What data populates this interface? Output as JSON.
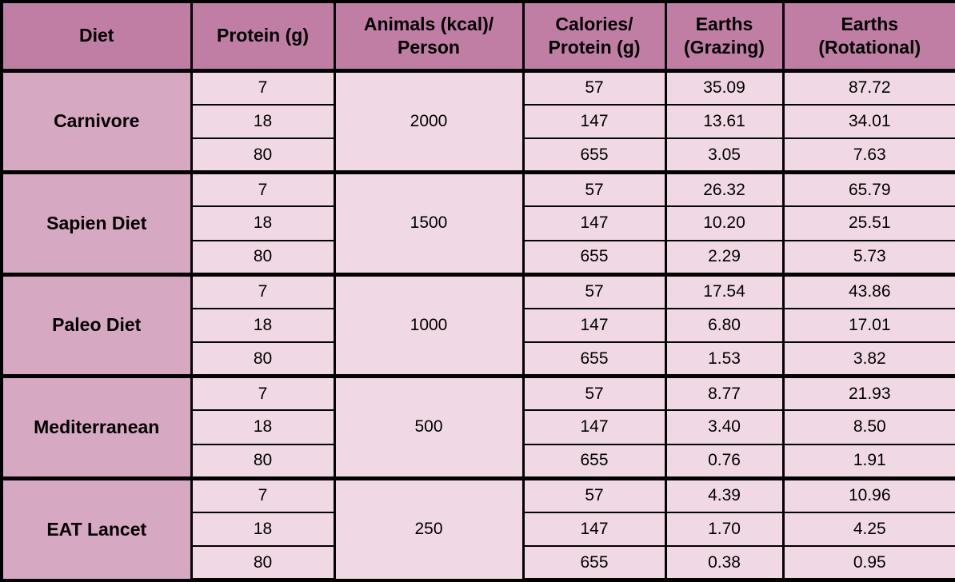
{
  "colors": {
    "header_bg": "#C07EA4",
    "diet_cell_bg": "#D7A8C2",
    "cell_bg": "#F0D9E5",
    "border": "#000000",
    "text": "#000000"
  },
  "chart_data": {
    "type": "table",
    "columns": [
      "Diet",
      "Protein (g)",
      "Animals (kcal)/\nPerson",
      "Calories/\nProtein (g)",
      "Earths\n(Grazing)",
      "Earths\n(Rotational)"
    ],
    "groups": [
      {
        "diet": "Carnivore",
        "animals_kcal_person": "2000",
        "rows": [
          {
            "protein_g": "7",
            "calories_protein_g": "57",
            "earths_grazing": "35.09",
            "earths_rotational": "87.72"
          },
          {
            "protein_g": "18",
            "calories_protein_g": "147",
            "earths_grazing": "13.61",
            "earths_rotational": "34.01"
          },
          {
            "protein_g": "80",
            "calories_protein_g": "655",
            "earths_grazing": "3.05",
            "earths_rotational": "7.63"
          }
        ]
      },
      {
        "diet": "Sapien Diet",
        "animals_kcal_person": "1500",
        "rows": [
          {
            "protein_g": "7",
            "calories_protein_g": "57",
            "earths_grazing": "26.32",
            "earths_rotational": "65.79"
          },
          {
            "protein_g": "18",
            "calories_protein_g": "147",
            "earths_grazing": "10.20",
            "earths_rotational": "25.51"
          },
          {
            "protein_g": "80",
            "calories_protein_g": "655",
            "earths_grazing": "2.29",
            "earths_rotational": "5.73"
          }
        ]
      },
      {
        "diet": "Paleo Diet",
        "animals_kcal_person": "1000",
        "rows": [
          {
            "protein_g": "7",
            "calories_protein_g": "57",
            "earths_grazing": "17.54",
            "earths_rotational": "43.86"
          },
          {
            "protein_g": "18",
            "calories_protein_g": "147",
            "earths_grazing": "6.80",
            "earths_rotational": "17.01"
          },
          {
            "protein_g": "80",
            "calories_protein_g": "655",
            "earths_grazing": "1.53",
            "earths_rotational": "3.82"
          }
        ]
      },
      {
        "diet": "Mediterranean",
        "animals_kcal_person": "500",
        "rows": [
          {
            "protein_g": "7",
            "calories_protein_g": "57",
            "earths_grazing": "8.77",
            "earths_rotational": "21.93"
          },
          {
            "protein_g": "18",
            "calories_protein_g": "147",
            "earths_grazing": "3.40",
            "earths_rotational": "8.50"
          },
          {
            "protein_g": "80",
            "calories_protein_g": "655",
            "earths_grazing": "0.76",
            "earths_rotational": "1.91"
          }
        ]
      },
      {
        "diet": "EAT Lancet",
        "animals_kcal_person": "250",
        "rows": [
          {
            "protein_g": "7",
            "calories_protein_g": "57",
            "earths_grazing": "4.39",
            "earths_rotational": "10.96"
          },
          {
            "protein_g": "18",
            "calories_protein_g": "147",
            "earths_grazing": "1.70",
            "earths_rotational": "4.25"
          },
          {
            "protein_g": "80",
            "calories_protein_g": "655",
            "earths_grazing": "0.38",
            "earths_rotational": "0.95"
          }
        ]
      }
    ]
  }
}
